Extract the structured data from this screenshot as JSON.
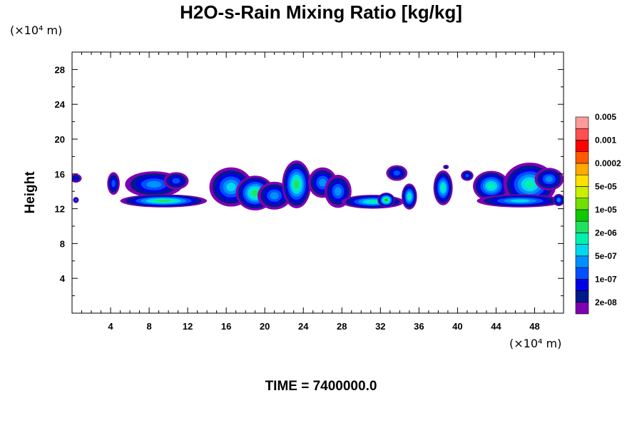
{
  "chart_data": {
    "type": "heatmap",
    "title": "H2O-s-Rain Mixing Ratio [kg/kg]",
    "ylabel": "Height",
    "x_unit_label": "(×10⁴ m)",
    "y_unit_label": "(×10⁴ m)",
    "time_label": "TIME = 7400000.0",
    "xlim": [
      0,
      51
    ],
    "ylim": [
      0,
      30
    ],
    "x_ticks": [
      4,
      8,
      12,
      16,
      20,
      24,
      28,
      32,
      36,
      40,
      44,
      48
    ],
    "y_ticks": [
      4,
      8,
      12,
      16,
      20,
      24,
      28
    ],
    "colorbar": {
      "colors": [
        "#7f00b2",
        "#001a8c",
        "#0000e6",
        "#0050ff",
        "#0090ff",
        "#00d8f0",
        "#00f0b0",
        "#22e060",
        "#10c800",
        "#70e000",
        "#c8f000",
        "#ffe000",
        "#ffaa00",
        "#ff5a00",
        "#ff0000",
        "#ff5050",
        "#ff9a9a"
      ],
      "labels": [
        "2e-08",
        "1e-07",
        "5e-07",
        "2e-06",
        "1e-05",
        "5e-05",
        "0.0002",
        "0.001",
        "0.005"
      ]
    },
    "blobs": [
      {
        "x": 0.4,
        "y": 15.5,
        "w": 1.2,
        "h": 1.0,
        "level": 2
      },
      {
        "x": 0.4,
        "y": 13.0,
        "w": 0.6,
        "h": 0.7,
        "level": 3
      },
      {
        "x": 4.3,
        "y": 14.9,
        "w": 1.3,
        "h": 2.6,
        "level": 3
      },
      {
        "x": 8.5,
        "y": 14.8,
        "w": 6.0,
        "h": 3.0,
        "level": 4
      },
      {
        "x": 10.8,
        "y": 15.2,
        "w": 2.6,
        "h": 2.0,
        "level": 3
      },
      {
        "x": 9.5,
        "y": 12.9,
        "w": 9.0,
        "h": 1.5,
        "level": 7
      },
      {
        "x": 16.5,
        "y": 14.5,
        "w": 4.5,
        "h": 4.5,
        "level": 5
      },
      {
        "x": 19.0,
        "y": 13.8,
        "w": 4.0,
        "h": 4.0,
        "level": 7
      },
      {
        "x": 21.0,
        "y": 13.5,
        "w": 3.5,
        "h": 3.2,
        "level": 4
      },
      {
        "x": 23.3,
        "y": 14.8,
        "w": 3.0,
        "h": 5.5,
        "level": 7
      },
      {
        "x": 26.0,
        "y": 15.0,
        "w": 3.0,
        "h": 3.5,
        "level": 4
      },
      {
        "x": 27.6,
        "y": 14.0,
        "w": 2.8,
        "h": 3.8,
        "level": 4
      },
      {
        "x": 31.2,
        "y": 12.8,
        "w": 6.5,
        "h": 1.6,
        "level": 6
      },
      {
        "x": 32.6,
        "y": 13.0,
        "w": 1.8,
        "h": 1.7,
        "level": 8
      },
      {
        "x": 33.7,
        "y": 16.1,
        "w": 2.2,
        "h": 1.8,
        "level": 3
      },
      {
        "x": 35.0,
        "y": 13.4,
        "w": 1.6,
        "h": 3.0,
        "level": 6
      },
      {
        "x": 38.5,
        "y": 14.4,
        "w": 2.0,
        "h": 4.0,
        "level": 6
      },
      {
        "x": 38.8,
        "y": 16.8,
        "w": 0.6,
        "h": 0.5,
        "level": 1
      },
      {
        "x": 41.0,
        "y": 15.8,
        "w": 1.3,
        "h": 1.2,
        "level": 3
      },
      {
        "x": 43.5,
        "y": 14.6,
        "w": 3.8,
        "h": 3.5,
        "level": 6
      },
      {
        "x": 47.5,
        "y": 14.8,
        "w": 5.5,
        "h": 5.0,
        "level": 6
      },
      {
        "x": 49.5,
        "y": 15.4,
        "w": 3.0,
        "h": 2.6,
        "level": 4
      },
      {
        "x": 46.5,
        "y": 12.9,
        "w": 9.0,
        "h": 1.5,
        "level": 5
      },
      {
        "x": 50.5,
        "y": 13.0,
        "w": 1.2,
        "h": 1.4,
        "level": 4
      }
    ]
  }
}
